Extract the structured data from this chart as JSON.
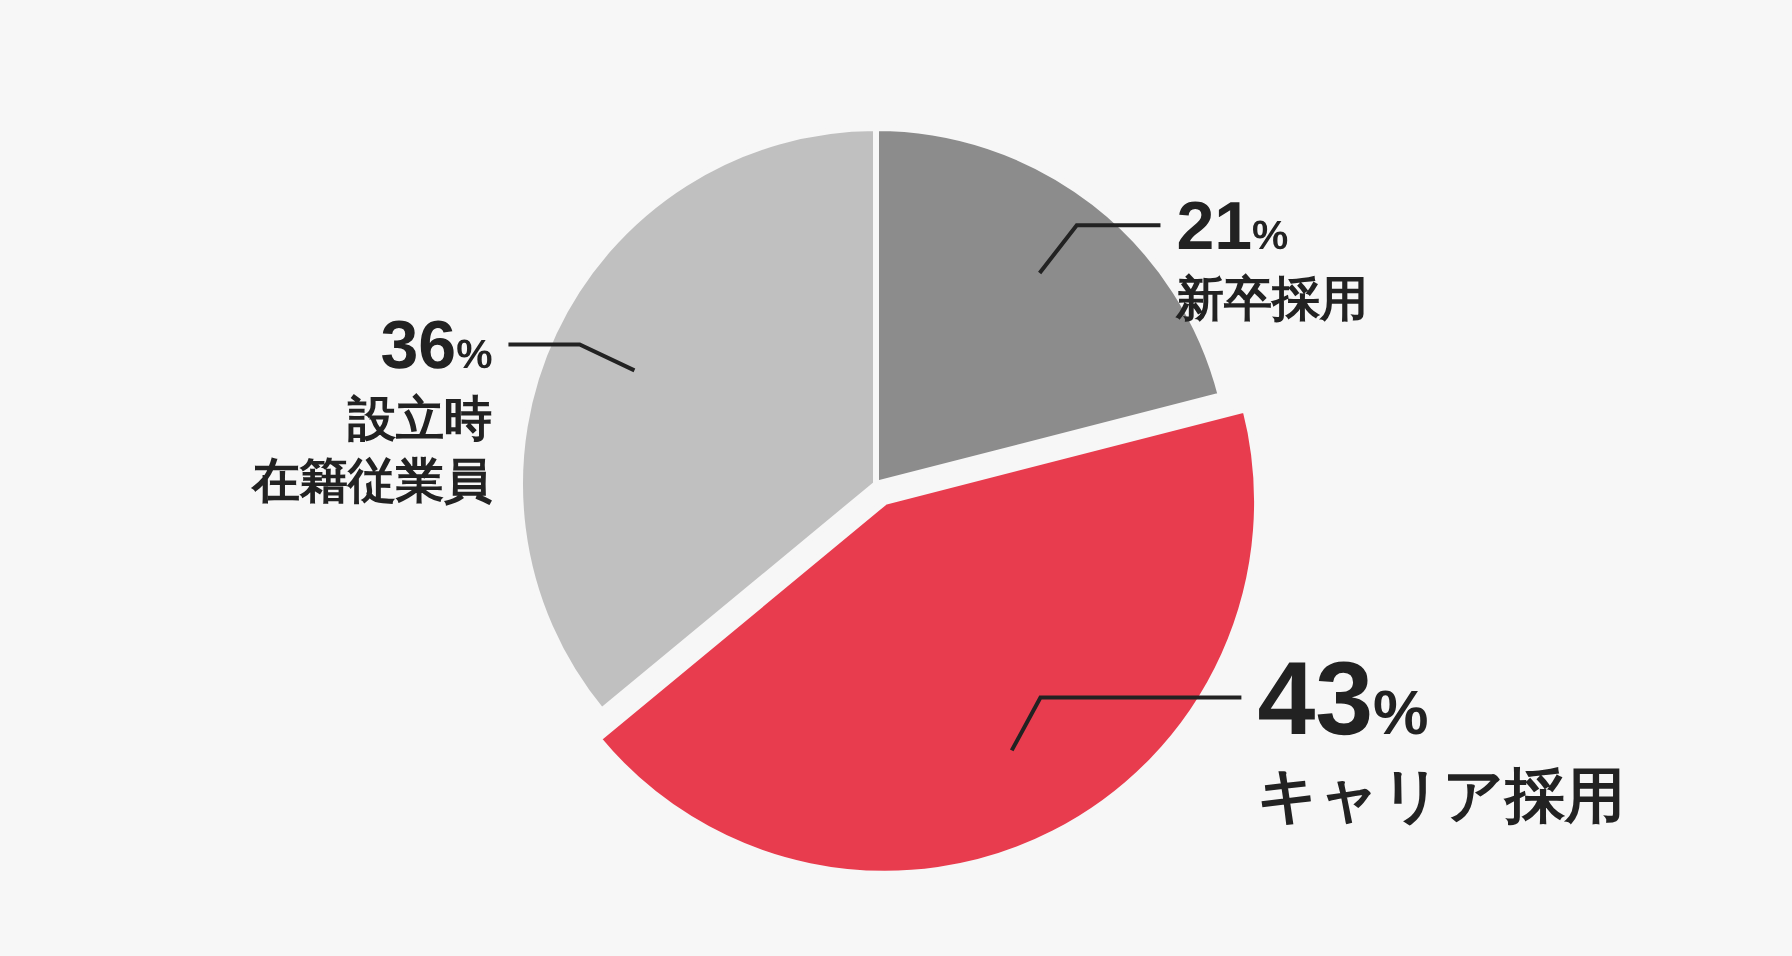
{
  "chart_data": {
    "type": "pie",
    "categories": [
      "新卒採用",
      "キャリア採用",
      "設立時在籍従業員"
    ],
    "values": [
      21,
      43,
      36
    ],
    "colors": [
      "#8c8c8c",
      "#e83c4e",
      "#c0c0c0"
    ],
    "value_labels": [
      "21%",
      "43%",
      "36%"
    ]
  }
}
